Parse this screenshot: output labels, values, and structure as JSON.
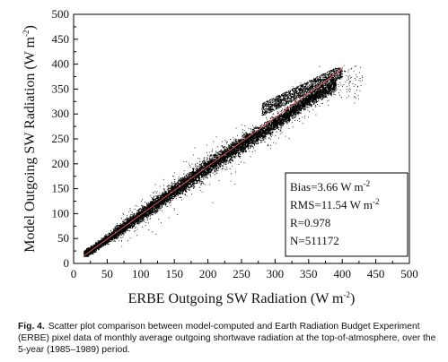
{
  "chart_data": {
    "type": "scatter",
    "title": "",
    "xlabel": "ERBE Outgoing SW Radiation (W m",
    "xlabel_sup": "-2",
    "xlabel_tail": ")",
    "ylabel": "Model Outgoing SW Radiation (W m",
    "ylabel_sup": "-2",
    "ylabel_tail": ")",
    "xlim": [
      0,
      500
    ],
    "ylim": [
      0,
      500
    ],
    "xticks": [
      0,
      50,
      100,
      150,
      200,
      250,
      300,
      350,
      400,
      450,
      500
    ],
    "yticks": [
      0,
      50,
      100,
      150,
      200,
      250,
      300,
      350,
      400,
      450,
      500
    ],
    "grid": false,
    "point_color": "#000000",
    "fit_line": {
      "x": [
        15,
        400
      ],
      "y": [
        15,
        390
      ],
      "color": "#d9534f"
    },
    "point_cloud": {
      "x_range": [
        15,
        430
      ],
      "y_range": [
        15,
        400
      ],
      "trend": [
        [
          15,
          18
        ],
        [
          50,
          50
        ],
        [
          100,
          98
        ],
        [
          150,
          147
        ],
        [
          200,
          195
        ],
        [
          250,
          240
        ],
        [
          300,
          282
        ],
        [
          350,
          330
        ],
        [
          400,
          368
        ]
      ],
      "cluster": {
        "x": [
          280,
          400
        ],
        "y": [
          300,
          395
        ]
      }
    },
    "stats": [
      {
        "text": "Bias=3.66 W m",
        "sup": "-2"
      },
      {
        "text": "RMS=11.54 W m",
        "sup": "-2"
      },
      {
        "text": "R=0.978",
        "sup": ""
      },
      {
        "text": "N=511172",
        "sup": ""
      }
    ]
  },
  "caption": {
    "label": "Fig. 4.",
    "text": "Scatter plot comparison between model-computed and Earth Radiation Budget Experiment (ERBE) pixel data of monthly average outgoing shortwave radiation at the top-of-atmosphere, over the 5-year (1985–1989) period."
  }
}
